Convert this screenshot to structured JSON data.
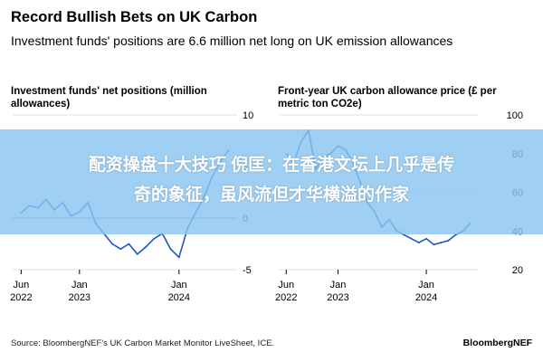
{
  "header": {
    "title": "Record Bullish Bets on UK Carbon",
    "subtitle": "Investment funds' positions are 6.6 million net long on UK emission allowances"
  },
  "footer": {
    "source": "Source: BloombergNEF's UK Carbon Market Monitor LiveSheet, ICE.",
    "brand": "BloombergNEF"
  },
  "banner": {
    "line1": "配资操盘十大技巧 倪匡：在香港文坛上几乎是传",
    "line2": "奇的象征，虽风流但才华横溢的作家"
  },
  "colors": {
    "line": "#1f57c3",
    "zero_line": "#888888",
    "grid": "#e2e2e2",
    "banner": "#8ac4f0"
  },
  "chart_data": [
    {
      "type": "line",
      "title": "Investment funds' net positions (million allowances)",
      "x_ticks": [
        "Jun 2022",
        "Jan 2023",
        "Jan 2024"
      ],
      "y_ticks": [
        10,
        5,
        0,
        -5
      ],
      "ylim": [
        -5,
        10
      ],
      "grid": true,
      "series": [
        {
          "x": [
            "2022-06",
            "2022-07",
            "2022-08",
            "2022-09",
            "2022-10",
            "2022-11",
            "2022-12",
            "2023-01",
            "2023-02",
            "2023-03",
            "2023-04",
            "2023-05",
            "2023-06",
            "2023-07",
            "2023-08",
            "2023-09",
            "2023-10",
            "2023-11",
            "2023-12",
            "2024-01",
            "2024-02",
            "2024-03",
            "2024-04",
            "2024-05",
            "2024-06",
            "2024-07"
          ],
          "values": [
            0.5,
            1.2,
            1.0,
            1.8,
            0.8,
            1.5,
            0.2,
            0.6,
            1.5,
            -0.5,
            -1.5,
            -2.5,
            -3.0,
            -2.5,
            -3.5,
            -2.8,
            -2.0,
            -1.5,
            -3.0,
            -3.8,
            -1.0,
            0.5,
            2.0,
            4.0,
            5.5,
            6.6
          ]
        }
      ]
    },
    {
      "type": "line",
      "title": "Front-year UK carbon allowance price (£ per metric ton CO2e)",
      "x_ticks": [
        "Jun 2022",
        "Jan 2023",
        "Jan 2024"
      ],
      "y_ticks": [
        100,
        80,
        60,
        40,
        20
      ],
      "ylim": [
        20,
        100
      ],
      "grid": true,
      "series": [
        {
          "x": [
            "2022-06",
            "2022-07",
            "2022-08",
            "2022-09",
            "2022-10",
            "2022-11",
            "2022-12",
            "2023-01",
            "2023-02",
            "2023-03",
            "2023-04",
            "2023-05",
            "2023-06",
            "2023-07",
            "2023-08",
            "2023-09",
            "2023-10",
            "2023-11",
            "2023-12",
            "2024-01",
            "2024-02",
            "2024-03",
            "2024-04",
            "2024-05",
            "2024-06",
            "2024-07"
          ],
          "values": [
            80,
            75,
            86,
            92,
            72,
            78,
            80,
            84,
            82,
            76,
            66,
            55,
            50,
            42,
            46,
            40,
            38,
            36,
            34,
            36,
            33,
            34,
            35,
            38,
            40,
            44
          ]
        }
      ]
    }
  ]
}
